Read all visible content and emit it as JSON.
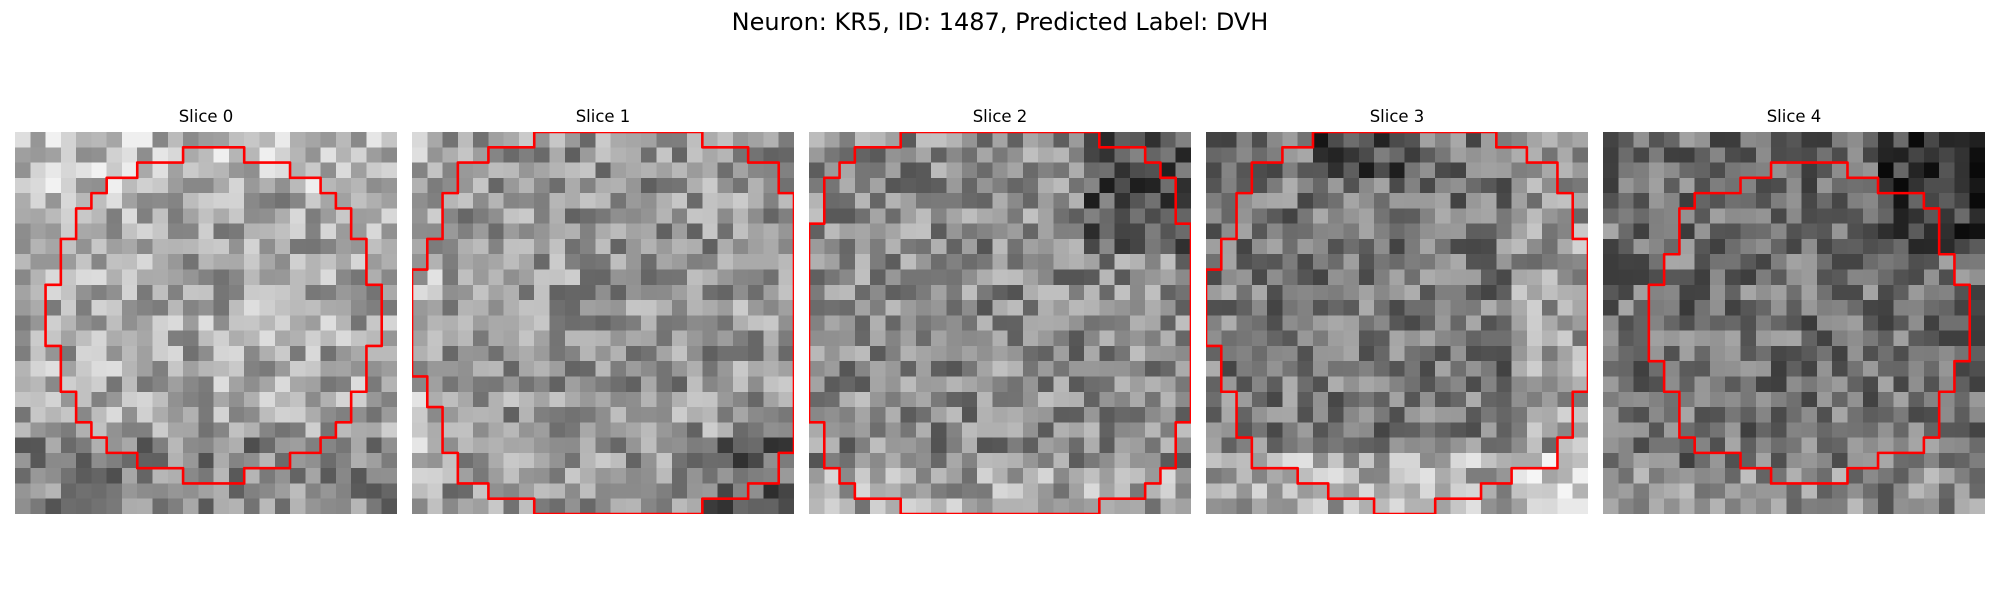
{
  "figure": {
    "title": "Neuron: KR5, ID: 1487, Predicted Label: DVH",
    "contour_color": "#ff0000"
  },
  "panels": [
    {
      "title": "Slice 0",
      "center": [
        13.0,
        12.0
      ],
      "radius": 10.2,
      "brightness": 168,
      "dark_corner": "bottom"
    },
    {
      "title": "Slice 1",
      "center": [
        13.5,
        12.5
      ],
      "radius": 12.8,
      "brightness": 150,
      "dark_corner": "bottom-right"
    },
    {
      "title": "Slice 2",
      "center": [
        12.5,
        12.5
      ],
      "radius": 13.2,
      "brightness": 138,
      "dark_corner": "top-right"
    },
    {
      "title": "Slice 3",
      "center": [
        13.0,
        11.8
      ],
      "radius": 12.2,
      "brightness": 120,
      "dark_corner": "top"
    },
    {
      "title": "Slice 4",
      "center": [
        13.5,
        12.5
      ],
      "radius": 9.8,
      "brightness": 112,
      "dark_corner": "top-right"
    }
  ]
}
